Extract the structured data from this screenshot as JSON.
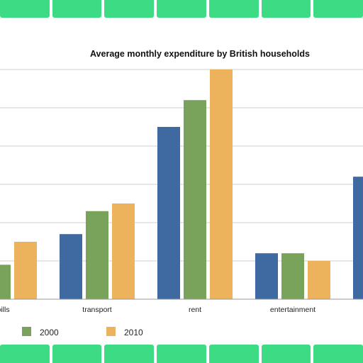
{
  "chart_data": {
    "type": "bar",
    "title": "Average monthly expenditure by British households",
    "xlabel": "",
    "ylabel": "",
    "categories": [
      "utility bills",
      "transport",
      "rent",
      "entertainment",
      ""
    ],
    "series": [
      {
        "name": "",
        "color": "#3f6aa1",
        "values": [
          null,
          1.7,
          4.5,
          1.2,
          3.2
        ]
      },
      {
        "name": "2000",
        "color": "#79a35a",
        "values": [
          0.9,
          2.3,
          5.2,
          1.2,
          null
        ]
      },
      {
        "name": "2010",
        "color": "#ecb35c",
        "values": [
          1.5,
          2.5,
          6.0,
          1.0,
          null
        ]
      }
    ],
    "ylim": [
      0,
      6
    ],
    "grid": true,
    "legend_position": "bottom"
  },
  "legend": {
    "items": [
      {
        "label": "2000",
        "color": "#79a35a"
      },
      {
        "label": "2010",
        "color": "#ecb35c"
      }
    ]
  },
  "visible_tick_labels": [
    "ty bills",
    "transport",
    "rent",
    "entertainment"
  ]
}
